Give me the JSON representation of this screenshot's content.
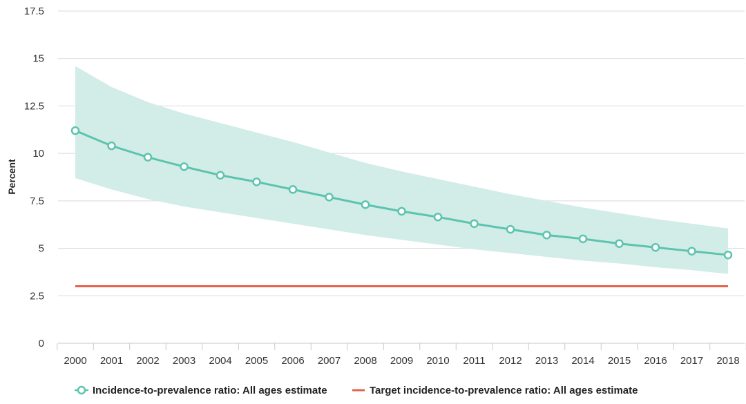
{
  "chart_data": {
    "type": "line",
    "title": "",
    "xlabel": "",
    "ylabel": "Percent",
    "ylim": [
      0,
      17.5
    ],
    "yticks": [
      "0",
      "2.5",
      "5",
      "7.5",
      "10",
      "12.5",
      "15",
      "17.5"
    ],
    "ytick_values": [
      0,
      2.5,
      5,
      7.5,
      10,
      12.5,
      15,
      17.5
    ],
    "categories": [
      "2000",
      "2001",
      "2002",
      "2003",
      "2004",
      "2005",
      "2006",
      "2007",
      "2008",
      "2009",
      "2010",
      "2011",
      "2012",
      "2013",
      "2014",
      "2015",
      "2016",
      "2017",
      "2018"
    ],
    "grid": true,
    "legend_position": "bottom",
    "series": [
      {
        "name": "Incidence-to-prevalence ratio: All ages estimate",
        "color": "#5cc4ae",
        "marker": "circle",
        "values": [
          11.2,
          10.4,
          9.8,
          9.3,
          8.85,
          8.5,
          8.1,
          7.7,
          7.3,
          6.95,
          6.65,
          6.3,
          6.0,
          5.7,
          5.5,
          5.25,
          5.05,
          4.85,
          4.65
        ],
        "lower": [
          8.7,
          8.1,
          7.6,
          7.2,
          6.9,
          6.6,
          6.3,
          6.0,
          5.7,
          5.45,
          5.2,
          4.95,
          4.75,
          4.55,
          4.35,
          4.2,
          4.0,
          3.85,
          3.65
        ],
        "upper": [
          14.6,
          13.5,
          12.7,
          12.1,
          11.6,
          11.1,
          10.6,
          10.05,
          9.5,
          9.05,
          8.65,
          8.25,
          7.85,
          7.5,
          7.15,
          6.85,
          6.55,
          6.3,
          6.05
        ]
      },
      {
        "name": "Target incidence-to-prevalence ratio: All ages estimate",
        "color": "#e8604c",
        "marker": "none",
        "values": [
          3,
          3,
          3,
          3,
          3,
          3,
          3,
          3,
          3,
          3,
          3,
          3,
          3,
          3,
          3,
          3,
          3,
          3,
          3
        ]
      }
    ],
    "band_color": "#d2ece7",
    "grid_color": "#d9d9d9"
  }
}
